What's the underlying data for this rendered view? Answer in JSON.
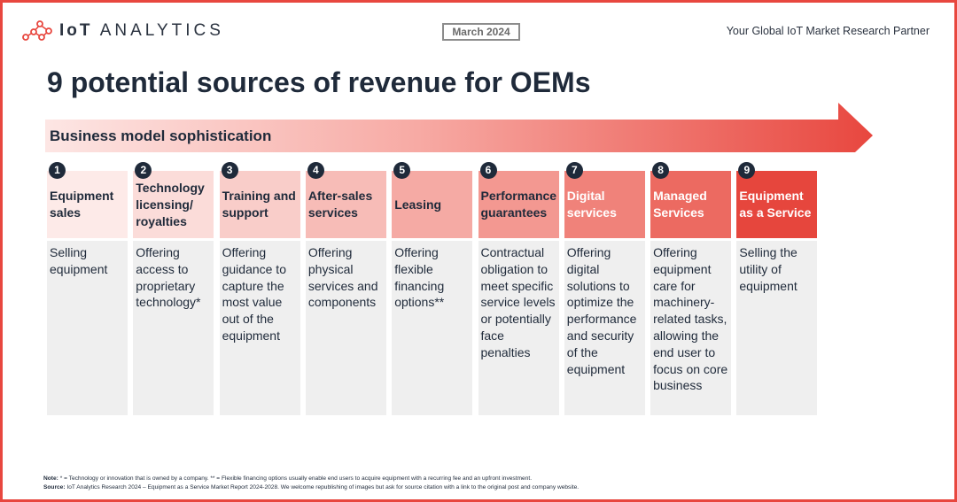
{
  "header": {
    "logo_text_bold": "IoT",
    "logo_text_rest": "ANALYTICS",
    "date_badge": "March 2024",
    "tagline": "Your Global IoT Market Research Partner"
  },
  "title": "9 potential sources of revenue for OEMs",
  "arrow_label": "Business model sophistication",
  "columns": [
    {
      "num": "1",
      "head": "Equipment sales",
      "body": "Selling equipment",
      "head_color": "#fdeae8",
      "head_text": "#1f2a3a"
    },
    {
      "num": "2",
      "head": "Technology licensing/ royalties",
      "body": "Offering access to proprietary technology*",
      "head_color": "#fbdcd9",
      "head_text": "#1f2a3a"
    },
    {
      "num": "3",
      "head": "Training and support",
      "body": "Offering guidance to capture the most value out of the equipment",
      "head_color": "#f9cdc9",
      "head_text": "#1f2a3a"
    },
    {
      "num": "4",
      "head": "After-sales services",
      "body": "Offering physical services and components",
      "head_color": "#f7bcb7",
      "head_text": "#1f2a3a"
    },
    {
      "num": "5",
      "head": "Leasing",
      "body": "Offering flexible financing options**",
      "head_color": "#f5aaa4",
      "head_text": "#1f2a3a"
    },
    {
      "num": "6",
      "head": "Performance guarantees",
      "body": "Contractual obligation to meet specific service levels or potentially face penalties",
      "head_color": "#f39891",
      "head_text": "#1f2a3a"
    },
    {
      "num": "7",
      "head": "Digital services",
      "body": "Offering digital solutions to optimize the performance and security of the equipment",
      "head_color": "#f0827a",
      "head_text": "#ffffff"
    },
    {
      "num": "8",
      "head": "Managed Services",
      "body": "Offering equipment care for machinery-related tasks, allowing the end user to focus on core business",
      "head_color": "#ec6a61",
      "head_text": "#ffffff"
    },
    {
      "num": "9",
      "head": "Equipment as a Service",
      "body": "Selling the utility of equipment",
      "head_color": "#e6463d",
      "head_text": "#ffffff"
    }
  ],
  "notes": {
    "note_label": "Note:",
    "note_text": " * = Technology or innovation that is owned by a company. ** = Flexible financing options usually enable end users to acquire equipment with a recurring fee and an upfront investment.",
    "source_label": "Source:",
    "source_text": " IoT Analytics Research 2024 – Equipment as a Service Market Report 2024-2028. We welcome republishing of images but ask for source citation with a link to the original post and company website."
  }
}
